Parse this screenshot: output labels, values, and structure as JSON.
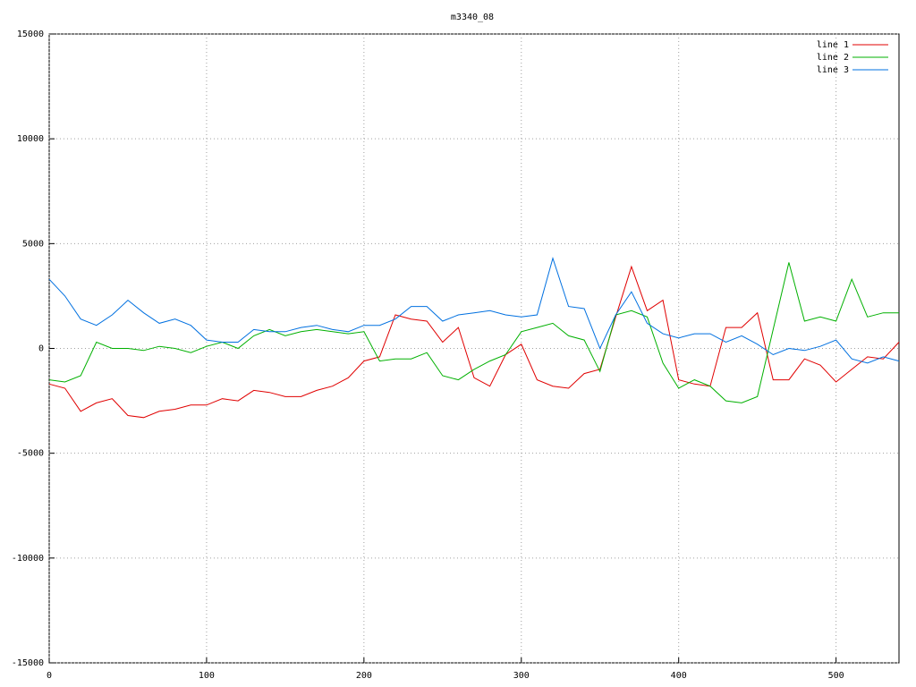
{
  "chart_data": {
    "type": "line",
    "title": "m3340_08",
    "x": [
      0,
      10,
      20,
      30,
      40,
      50,
      60,
      70,
      80,
      90,
      100,
      110,
      120,
      130,
      140,
      150,
      160,
      170,
      180,
      190,
      200,
      210,
      220,
      230,
      240,
      250,
      260,
      270,
      280,
      290,
      300,
      310,
      320,
      330,
      340,
      350,
      360,
      370,
      380,
      390,
      400,
      410,
      420,
      430,
      440,
      450,
      460,
      470,
      480,
      490,
      500,
      510,
      520,
      530,
      540
    ],
    "series": [
      {
        "name": "line 1",
        "color": "#e00000",
        "values": [
          -1700,
          -1900,
          -3000,
          -2600,
          -2400,
          -3200,
          -3300,
          -3000,
          -2900,
          -2700,
          -2700,
          -2400,
          -2500,
          -2000,
          -2100,
          -2300,
          -2300,
          -2000,
          -1800,
          -1400,
          -600,
          -400,
          1600,
          1400,
          1300,
          300,
          1000,
          -1400,
          -1800,
          -300,
          200,
          -1500,
          -1800,
          -1900,
          -1200,
          -1000,
          1500,
          3900,
          1800,
          2300,
          -1500,
          -1700,
          -1800,
          1000,
          1000,
          1700,
          -1500,
          -1500,
          -500,
          -800,
          -1600,
          -1000,
          -400,
          -500,
          300
        ]
      },
      {
        "name": "line 2",
        "color": "#00b000",
        "values": [
          -1500,
          -1600,
          -1300,
          300,
          0,
          0,
          -100,
          100,
          0,
          -200,
          100,
          300,
          0,
          600,
          900,
          600,
          800,
          900,
          800,
          700,
          800,
          -600,
          -500,
          -500,
          -200,
          -1300,
          -1500,
          -1000,
          -600,
          -300,
          800,
          1000,
          1200,
          600,
          400,
          -1100,
          1600,
          1800,
          1500,
          -700,
          -1900,
          -1500,
          -1800,
          -2500,
          -2600,
          -2300,
          900,
          4100,
          1300,
          1500,
          1300,
          3300,
          1500,
          1700,
          1700
        ]
      },
      {
        "name": "line 3",
        "color": "#0070e0",
        "values": [
          3300,
          2500,
          1400,
          1100,
          1600,
          2300,
          1700,
          1200,
          1400,
          1100,
          400,
          300,
          300,
          900,
          800,
          800,
          1000,
          1100,
          900,
          800,
          1100,
          1100,
          1400,
          2000,
          2000,
          1300,
          1600,
          1700,
          1800,
          1600,
          1500,
          1600,
          4300,
          2000,
          1900,
          0,
          1600,
          2700,
          1200,
          700,
          500,
          700,
          700,
          300,
          600,
          200,
          -300,
          0,
          -100,
          100,
          400,
          -500,
          -700,
          -400,
          -600
        ]
      }
    ],
    "xlim": [
      0,
      540
    ],
    "xticks": [
      0,
      100,
      200,
      300,
      400,
      500
    ],
    "ylim": [
      -15000,
      15000
    ],
    "yticks": [
      -15000,
      -10000,
      -5000,
      0,
      5000,
      10000,
      15000
    ],
    "grid": true,
    "legend": "top-right"
  }
}
